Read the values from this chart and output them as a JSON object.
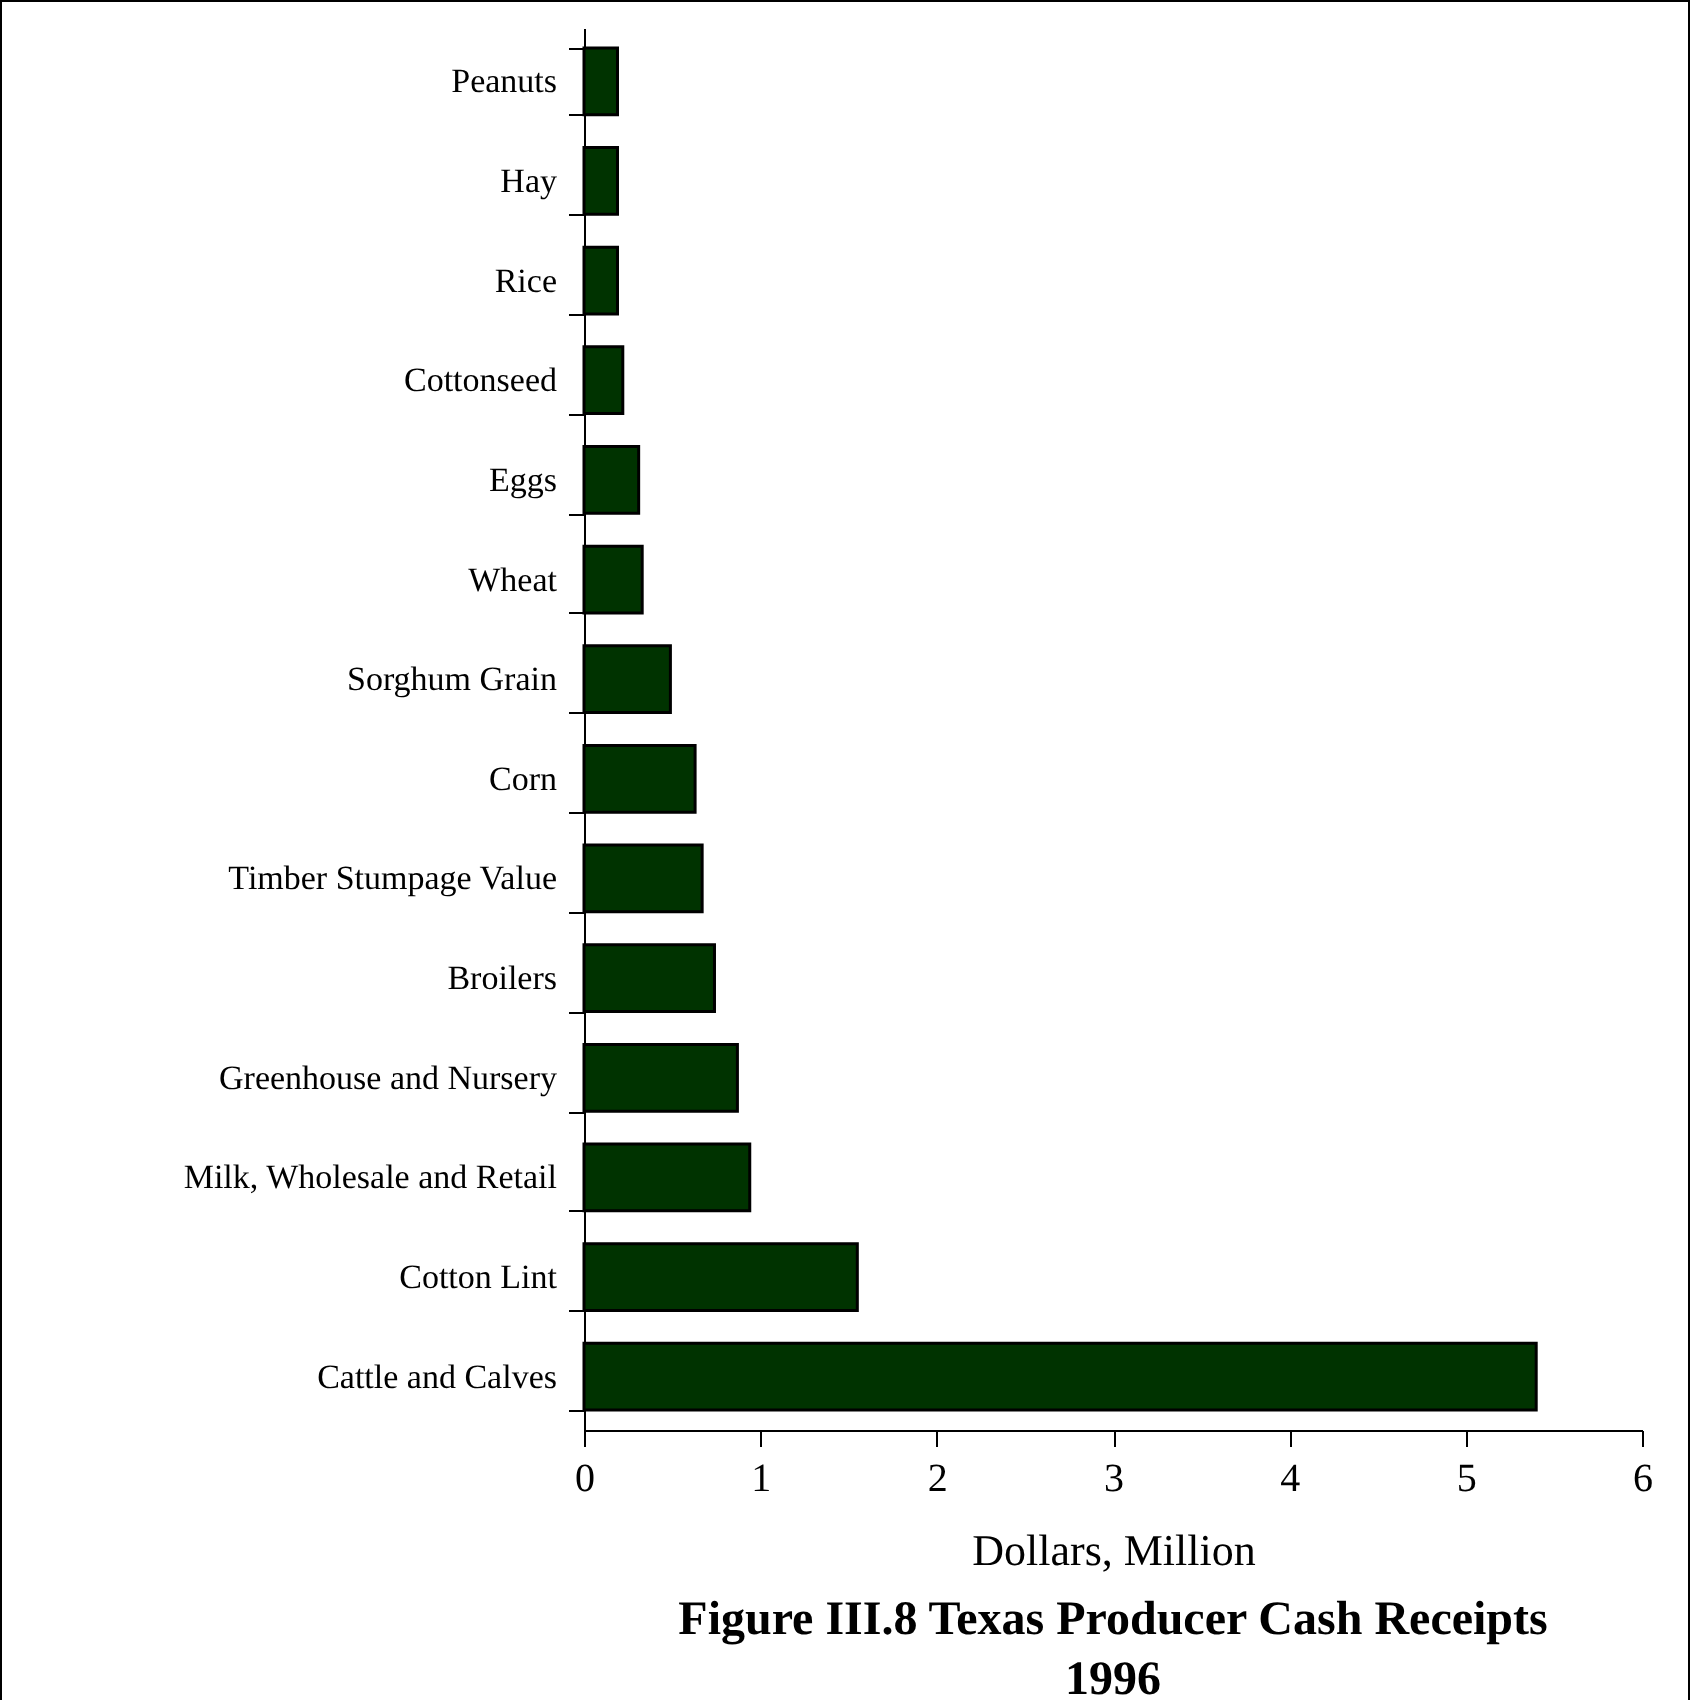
{
  "chart_data": {
    "type": "bar",
    "orientation": "horizontal",
    "title": "Figure III.8 Texas Producer Cash Receipts 1996",
    "xlabel": "Dollars, Million",
    "categories": [
      "Peanuts",
      "Hay",
      "Rice",
      "Cottonseed",
      "Eggs",
      "Wheat",
      "Sorghum Grain",
      "Corn",
      "Timber Stumpage Value",
      "Broilers",
      "Greenhouse and Nursery",
      "Milk, Wholesale and Retail",
      "Cotton Lint",
      "Cattle and Calves"
    ],
    "values": [
      0.19,
      0.19,
      0.19,
      0.22,
      0.31,
      0.33,
      0.49,
      0.63,
      0.67,
      0.74,
      0.87,
      0.94,
      1.55,
      5.4
    ],
    "color": "#003300",
    "xlim": [
      0,
      6
    ],
    "xticks": [
      0,
      1,
      2,
      3,
      4,
      5,
      6
    ],
    "grid": false
  }
}
